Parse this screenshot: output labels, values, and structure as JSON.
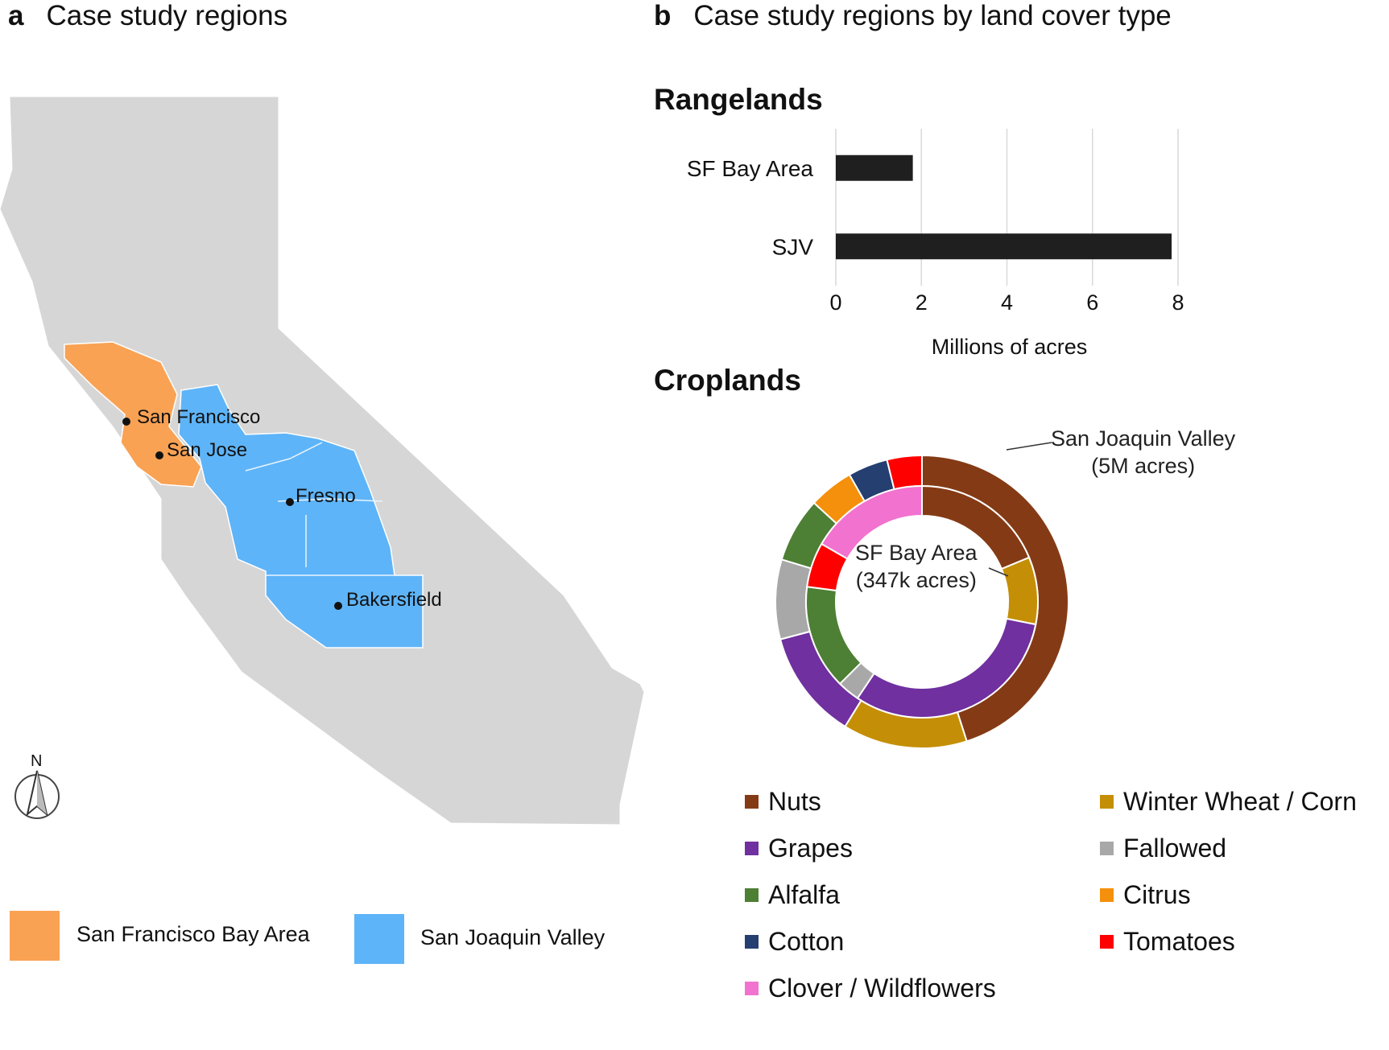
{
  "panel_a": {
    "letter": "a",
    "title": "Case study regions",
    "cities": [
      "San Francisco",
      "San Jose",
      "Fresno",
      "Bakersfield"
    ],
    "north_label": "N",
    "legend": [
      {
        "label": "San Francisco Bay Area",
        "color": "#F9A254"
      },
      {
        "label": "San Joaquin Valley",
        "color": "#5EB4F8"
      }
    ],
    "colors": {
      "state": "#D6D6D6",
      "bay_area": "#F9A254",
      "sjv": "#5EB4F8"
    }
  },
  "panel_b": {
    "letter": "b",
    "title": "Case study regions by land cover type",
    "rangelands_heading": "Rangelands",
    "croplands_heading": "Croplands",
    "sjv_label": "San Joaquin Valley",
    "sjv_acres": "(5M acres)",
    "sf_label": "SF Bay Area",
    "sf_acres": "(347k acres)"
  },
  "chart_data": [
    {
      "type": "bar",
      "orientation": "horizontal",
      "title": "Rangelands",
      "categories": [
        "SF Bay Area",
        "SJV"
      ],
      "values": [
        1.8,
        7.85
      ],
      "xlabel": "Millions of acres",
      "xlim": [
        0,
        8
      ],
      "xticks": [
        "0",
        "2",
        "4",
        "6",
        "8"
      ],
      "grid": true,
      "color": "#1F1F1F"
    },
    {
      "type": "pie",
      "variant": "donut",
      "title": "Croplands",
      "categories": [
        "Nuts",
        "Winter Wheat / Corn",
        "Grapes",
        "Fallowed",
        "Alfalfa",
        "Citrus",
        "Cotton",
        "Tomatoes",
        "Clover / Wildflowers"
      ],
      "colors": [
        "#843B15",
        "#C48F06",
        "#7030A0",
        "#A8A8A8",
        "#4D7F35",
        "#F5900C",
        "#243F70",
        "#FF0000",
        "#F272D0"
      ],
      "series": [
        {
          "name": "San Joaquin Valley (5M acres)",
          "ring": "outer",
          "values": [
            41,
            12.5,
            11,
            8,
            6.5,
            4.5,
            4,
            3.5,
            0
          ]
        },
        {
          "name": "SF Bay Area (347k acres)",
          "ring": "inner",
          "values": [
            18,
            9,
            30,
            3,
            14,
            0,
            0,
            6,
            16
          ]
        }
      ],
      "legend_position": "bottom"
    }
  ]
}
